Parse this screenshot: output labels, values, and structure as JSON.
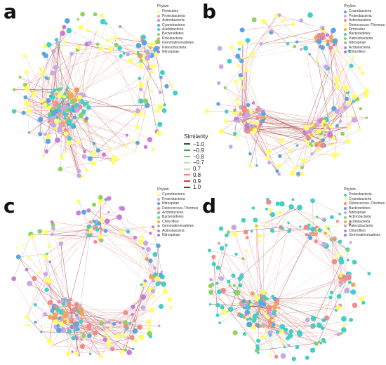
{
  "panels": [
    {
      "id": "a",
      "legend_title": "Phylum",
      "legend": [
        {
          "label": "Firmicutes",
          "color": "#ffff66"
        },
        {
          "label": "Proteobacteria",
          "color": "#c6a9e8"
        },
        {
          "label": "Actinobacteria",
          "color": "#f08b8b"
        },
        {
          "label": "Cyanobacteria",
          "color": "#5aa7e0"
        },
        {
          "label": "Acidobacteria",
          "color": "#40d0c4"
        },
        {
          "label": "Bacteroidetes",
          "color": "#8dd35f"
        },
        {
          "label": "Rokubacteria",
          "color": "#f2a65a"
        },
        {
          "label": "Gemmatimonadetes",
          "color": "#b0b0b0"
        },
        {
          "label": "Patescibacteria",
          "color": "#c77dd9"
        },
        {
          "label": "Nitrospirae",
          "color": "#9e7fd4"
        }
      ]
    },
    {
      "id": "b",
      "legend_title": "Phylum",
      "legend": [
        {
          "label": "Cyanobacteria",
          "color": "#5aa7e0"
        },
        {
          "label": "Proteobacteria",
          "color": "#c6a9e8"
        },
        {
          "label": "Actinobacteria",
          "color": "#f08b8b"
        },
        {
          "label": "Deinococcus–Thermus",
          "color": "#ffff66"
        },
        {
          "label": "Firmicutes",
          "color": "#f2a65a"
        },
        {
          "label": "Bacteroidetes",
          "color": "#40d0c4"
        },
        {
          "label": "Patescibacteria",
          "color": "#8dd35f"
        },
        {
          "label": "Nitrospirae",
          "color": "#b0b0b0"
        },
        {
          "label": "Acidobacteria",
          "color": "#c77dd9"
        },
        {
          "label": "Chloroflexi",
          "color": "#9e7fd4"
        }
      ]
    },
    {
      "id": "c",
      "legend_title": "Phylum",
      "legend": [
        {
          "label": "Cyanobacteria",
          "color": "#ffff66"
        },
        {
          "label": "Proteobacteria",
          "color": "#c6a9e8"
        },
        {
          "label": "Nitrospirae",
          "color": "#5aa7e0"
        },
        {
          "label": "Deinococcus–Thermus",
          "color": "#f08b8b"
        },
        {
          "label": "Acidobacteria",
          "color": "#40d0c4"
        },
        {
          "label": "Bacteroidetes",
          "color": "#8dd35f"
        },
        {
          "label": "Chloroflexi",
          "color": "#f2a65a"
        },
        {
          "label": "Gemmatimonadetes",
          "color": "#b0b0b0"
        },
        {
          "label": "Actinobacteria",
          "color": "#c77dd9"
        },
        {
          "label": "Nitrospinae",
          "color": "#9e7fd4"
        }
      ]
    },
    {
      "id": "d",
      "legend_title": "Phylum",
      "legend": [
        {
          "label": "Proteobacteria",
          "color": "#40d0c4"
        },
        {
          "label": "Cyanobacteria",
          "color": "#ffff66"
        },
        {
          "label": "Deinococcus–Thermus",
          "color": "#f08b8b"
        },
        {
          "label": "Bacteroidetes",
          "color": "#5aa7e0"
        },
        {
          "label": "Nitrospirae",
          "color": "#c6a9e8"
        },
        {
          "label": "Actinobacteria",
          "color": "#8dd35f"
        },
        {
          "label": "Acidobacteria",
          "color": "#f2a65a"
        },
        {
          "label": "Patescibacteria",
          "color": "#b0b0b0"
        },
        {
          "label": "Chloroflexi",
          "color": "#c77dd9"
        },
        {
          "label": "Gemmatimonadetes",
          "color": "#9e7fd4"
        }
      ]
    }
  ],
  "similarity_legend": {
    "title": "Similarity",
    "items": [
      {
        "label": "−1.0",
        "color": "#1b5e20"
      },
      {
        "label": "−0.9",
        "color": "#43a047"
      },
      {
        "label": "−0.8",
        "color": "#7cc576"
      },
      {
        "label": "−0.7",
        "color": "#b9e3b0"
      },
      {
        "label": "0.7",
        "color": "#f6c6c6"
      },
      {
        "label": "0.8",
        "color": "#f08080"
      },
      {
        "label": "0.9",
        "color": "#e53935"
      },
      {
        "label": "1.0",
        "color": "#8b1a1a"
      }
    ]
  }
}
